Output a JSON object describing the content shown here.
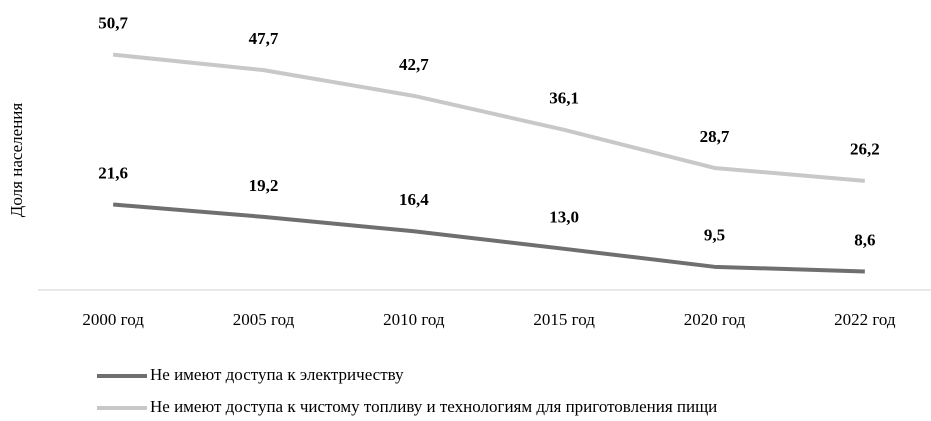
{
  "chart_data": {
    "type": "line",
    "y_label": "Доля населения",
    "categories": [
      "2000 год",
      "2005 год",
      "2010 год",
      "2015 год",
      "2020 год",
      "2022 год"
    ],
    "series": [
      {
        "name": "Не имеют доступа к электричеству",
        "color": "#6f6f6f",
        "values": [
          21.6,
          19.2,
          16.4,
          13.0,
          9.5,
          8.6
        ],
        "value_labels": [
          "21,6",
          "19,2",
          "16,4",
          "13,0",
          "9,5",
          "8,6"
        ]
      },
      {
        "name": "Не имеют доступа к чистому топливу и технологиям для приготовления пищи",
        "color": "#c8c8c8",
        "values": [
          50.7,
          47.7,
          42.7,
          36.1,
          28.7,
          26.2
        ],
        "value_labels": [
          "50,7",
          "47,7",
          "42,7",
          "36,1",
          "28,7",
          "26,2"
        ]
      }
    ],
    "ylim": [
      5,
      55
    ],
    "grid": false
  }
}
